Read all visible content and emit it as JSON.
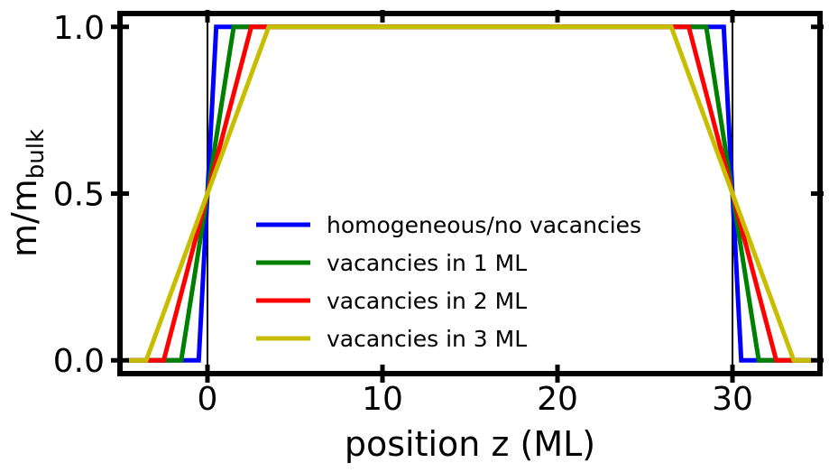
{
  "chart_data": {
    "type": "line",
    "xlabel": "position z (ML)",
    "ylabel": {
      "base": "m/m",
      "sub": "bulk"
    },
    "xlim": [
      -5,
      35
    ],
    "ylim": [
      -0.04,
      1.04
    ],
    "xticks": [
      0,
      10,
      20,
      30
    ],
    "xtick_labels": [
      "0",
      "10",
      "20",
      "30"
    ],
    "yticks": [
      0.0,
      0.5,
      1.0
    ],
    "ytick_labels": [
      "0.0",
      "0.5",
      "1.0"
    ],
    "grid": false,
    "legend_position": "center-bottom",
    "vertical_lines": [
      0,
      30
    ],
    "series": [
      {
        "name": "homogeneous/no vacancies",
        "color": "#0000ff",
        "x": [
          -4.5,
          -0.5,
          0.5,
          29.5,
          30.5,
          34.5
        ],
        "y": [
          0,
          0,
          1,
          1,
          0,
          0
        ]
      },
      {
        "name": "vacancies in 1 ML",
        "color": "#008000",
        "x": [
          -4.5,
          -1.5,
          1.5,
          28.5,
          31.5,
          34.5
        ],
        "y": [
          0,
          0,
          1,
          1,
          0,
          0
        ]
      },
      {
        "name": "vacancies in 2 ML",
        "color": "#ff0000",
        "x": [
          -4.5,
          -2.5,
          2.5,
          27.5,
          32.5,
          34.5
        ],
        "y": [
          0,
          0,
          1,
          1,
          0,
          0
        ]
      },
      {
        "name": "vacancies in 3 ML",
        "color": "#c8be00",
        "x": [
          -4.5,
          -3.5,
          3.5,
          26.5,
          33.5,
          34.5
        ],
        "y": [
          0,
          0,
          1,
          1,
          0,
          0
        ]
      }
    ]
  }
}
